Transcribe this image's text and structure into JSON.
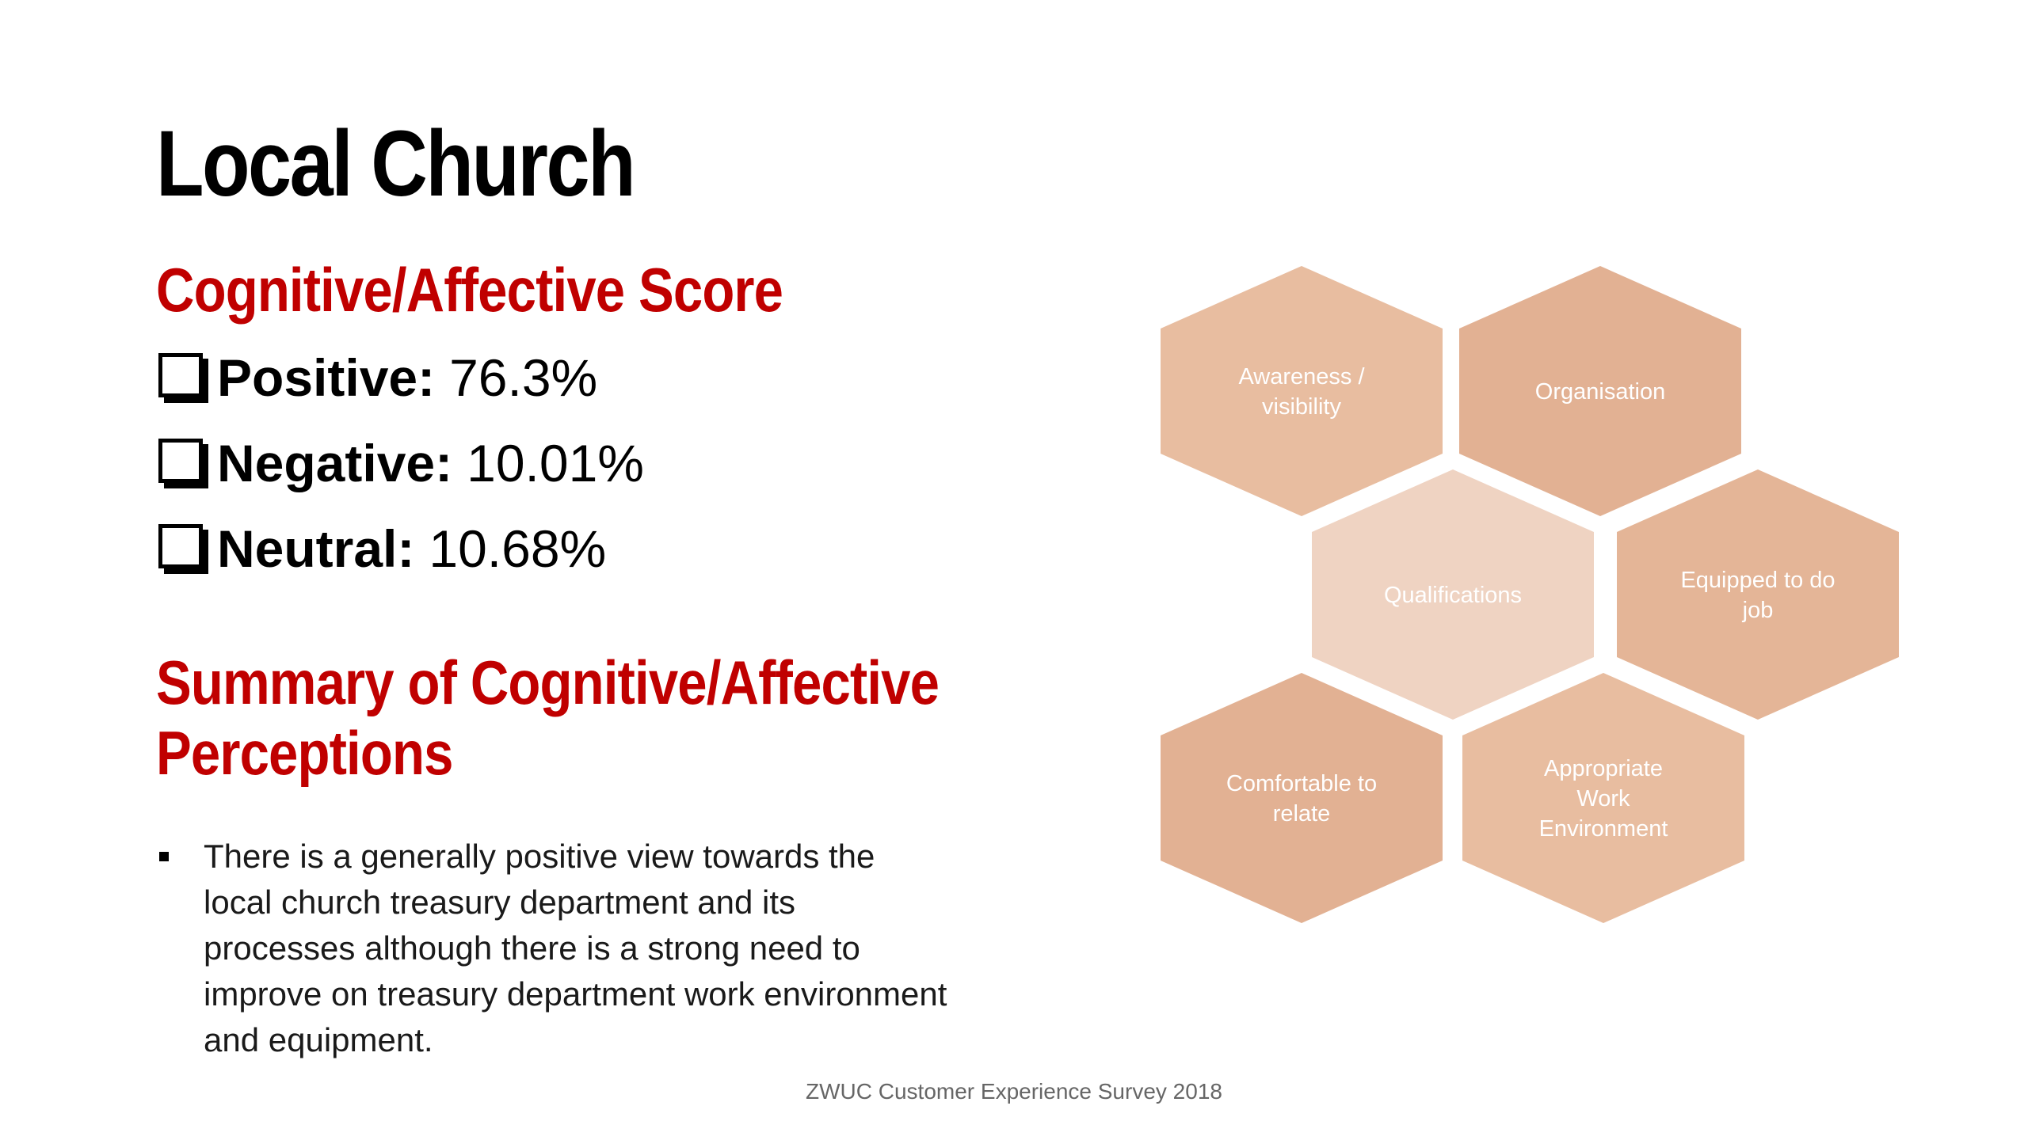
{
  "slide": {
    "title": "Local Church",
    "score_heading": "Cognitive/Affective Score",
    "scores": [
      {
        "label": "Positive:",
        "value": "76.3%"
      },
      {
        "label": "Negative:",
        "value": "10.01%"
      },
      {
        "label": "Neutral:",
        "value": "10.68%"
      }
    ],
    "summary_heading_line1": "Summary of Cognitive/Affective",
    "summary_heading_line2": "Perceptions",
    "bullets": [
      "There is a generally positive view towards the local church treasury department and its processes although there is a strong need to improve on treasury department work environment and equipment."
    ],
    "footer": "ZWUC Customer Experience Survey 2018"
  },
  "hexagons": [
    {
      "lines": [
        "Awareness /",
        "visibility"
      ],
      "color": "#e8bda0"
    },
    {
      "lines": [
        "Organisation"
      ],
      "color": "#e2b193"
    },
    {
      "lines": [
        "Qualifications"
      ],
      "color": "#efd3c2"
    },
    {
      "lines": [
        "Equipped to do",
        "job"
      ],
      "color": "#e4b597"
    },
    {
      "lines": [
        "Comfortable to",
        "relate"
      ],
      "color": "#e2b193"
    },
    {
      "lines": [
        "Appropriate",
        "Work",
        "Environment"
      ],
      "color": "#e8bda0"
    }
  ],
  "colors": {
    "accent_red": "#c00000",
    "footer_gray": "#666666"
  }
}
